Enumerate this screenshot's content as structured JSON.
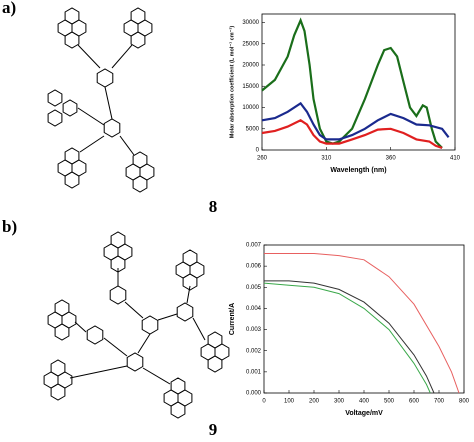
{
  "panel_labels": [
    "a)",
    "b)"
  ],
  "compound_labels": [
    "8",
    "9"
  ],
  "chart_data": [
    {
      "type": "line",
      "xlabel": "Wavelength (nm)",
      "ylabel": "Molar absorption coefficient (L mol⁻¹ cm⁻¹)",
      "xlim": [
        260,
        410
      ],
      "xticks": [
        260,
        310,
        360,
        410
      ],
      "ylim": [
        0,
        32000
      ],
      "yticks": [
        0,
        5000,
        10000,
        15000,
        20000,
        25000,
        30000
      ],
      "series": [
        {
          "color": "#1a6e1a",
          "x": [
            260,
            270,
            280,
            285,
            290,
            293,
            297,
            300,
            305,
            310,
            315,
            320,
            330,
            340,
            350,
            355,
            360,
            365,
            370,
            375,
            380,
            385,
            388,
            392,
            395,
            400
          ],
          "values": [
            14000,
            16500,
            22000,
            27000,
            30500,
            28000,
            20000,
            12000,
            5000,
            2000,
            1500,
            2000,
            5000,
            12000,
            20000,
            23500,
            24000,
            22000,
            16000,
            10000,
            8000,
            10500,
            10000,
            5000,
            2000,
            500
          ]
        },
        {
          "color": "#1a2a8e",
          "x": [
            260,
            270,
            280,
            290,
            295,
            300,
            305,
            310,
            320,
            330,
            340,
            350,
            360,
            370,
            380,
            390,
            400,
            405
          ],
          "values": [
            7000,
            7500,
            9000,
            11000,
            9000,
            6000,
            3500,
            2500,
            2500,
            3500,
            5000,
            7000,
            8500,
            7500,
            6000,
            5800,
            5000,
            3000
          ]
        },
        {
          "color": "#e02020",
          "x": [
            260,
            270,
            280,
            290,
            295,
            300,
            305,
            310,
            320,
            330,
            340,
            350,
            360,
            370,
            380,
            390,
            395,
            400
          ],
          "values": [
            4000,
            4500,
            5500,
            7000,
            6000,
            3500,
            2000,
            1500,
            1500,
            2500,
            3500,
            4800,
            5000,
            4000,
            2500,
            2000,
            1000,
            500
          ]
        }
      ]
    },
    {
      "type": "line",
      "xlabel": "Voltage/mV",
      "ylabel": "Current/A",
      "xlim": [
        0,
        800
      ],
      "xticks": [
        0,
        100,
        200,
        300,
        400,
        500,
        600,
        700,
        800
      ],
      "ylim": [
        0,
        0.007
      ],
      "yticks": [
        {
          "value": 0,
          "label": "0.000"
        },
        {
          "value": 0.001,
          "label": "0.001"
        },
        {
          "value": 0.002,
          "label": "0.002"
        },
        {
          "value": 0.003,
          "label": "0.003"
        },
        {
          "value": 0.004,
          "label": "0.004"
        },
        {
          "value": 0.005,
          "label": "0.005"
        },
        {
          "value": 0.006,
          "label": "0.006"
        },
        {
          "value": 0.007,
          "label": "0.007"
        }
      ],
      "series": [
        {
          "color": "#e86060",
          "x": [
            0,
            100,
            200,
            300,
            400,
            500,
            600,
            700,
            750,
            780
          ],
          "values": [
            0.0066,
            0.0066,
            0.0066,
            0.0065,
            0.0063,
            0.0055,
            0.0042,
            0.0022,
            0.001,
            0
          ]
        },
        {
          "color": "#333333",
          "x": [
            0,
            100,
            200,
            300,
            400,
            500,
            600,
            650,
            680
          ],
          "values": [
            0.0053,
            0.0053,
            0.0052,
            0.0049,
            0.0043,
            0.0033,
            0.0018,
            0.0008,
            0
          ]
        },
        {
          "color": "#3aa84a",
          "x": [
            0,
            100,
            200,
            300,
            400,
            500,
            600,
            650,
            665
          ],
          "values": [
            0.0052,
            0.0051,
            0.005,
            0.0047,
            0.004,
            0.003,
            0.0014,
            0.0004,
            0
          ]
        }
      ]
    }
  ]
}
